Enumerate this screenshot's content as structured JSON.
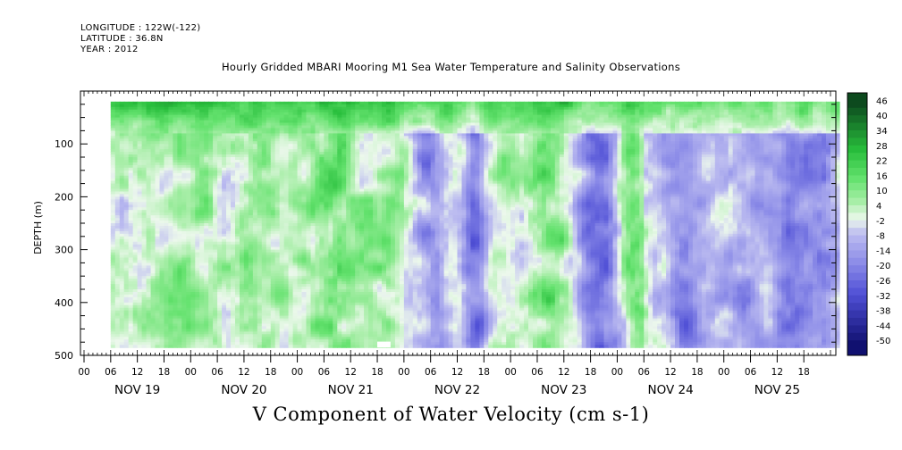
{
  "header": {
    "longitude": "LONGITUDE : 122W(-122)",
    "latitude": "LATITUDE : 36.8N",
    "year": "YEAR : 2012"
  },
  "chart_data": {
    "type": "heatmap",
    "title": "Hourly Gridded MBARI Mooring M1 Sea Water Temperature and Salinity Observations",
    "xlabel": "V Component of Water Velocity (cm s-1)",
    "ylabel": "DEPTH (m)",
    "y_range": [
      0,
      500
    ],
    "y_reversed": true,
    "y_ticks": [
      100,
      200,
      300,
      400,
      500
    ],
    "x_hour_ticks": [
      "00",
      "06",
      "12",
      "18",
      "00",
      "06",
      "12",
      "18",
      "00",
      "06",
      "12",
      "18",
      "00",
      "06",
      "12",
      "18",
      "00",
      "06",
      "12",
      "18",
      "00",
      "06",
      "12",
      "18",
      "00",
      "06",
      "12",
      "18"
    ],
    "x_day_labels": [
      "NOV 19",
      "NOV 20",
      "NOV 21",
      "NOV 22",
      "NOV 23",
      "NOV 24",
      "NOV 25"
    ],
    "colorbar": {
      "levels": [
        -50,
        -44,
        -38,
        -32,
        -26,
        -20,
        -14,
        -8,
        -2,
        4,
        10,
        16,
        22,
        28,
        34,
        40,
        46
      ],
      "labels": [
        "46",
        "40",
        "34",
        "28",
        "22",
        "16",
        "10",
        "4",
        "-2",
        "-8",
        "-14",
        "-20",
        "-26",
        "-32",
        "-38",
        "-44",
        "-50"
      ],
      "color_min": "#101070",
      "color_mid": "#ecf8ec",
      "color_max": "#0d4a1e"
    },
    "data_depth_range": [
      20,
      485
    ],
    "surface_layer_value": 22,
    "blue_periods": [
      "NOV 22 06 – NOV 22 18",
      "NOV 23 06 – NOV 23 18",
      "NOV 24 00 – NOV 25 18"
    ],
    "green_periods": [
      "NOV 19 00 – NOV 22 00",
      "NOV 22 18 – NOV 23 06",
      "NOV 23 18 – NOV 24 00"
    ]
  }
}
